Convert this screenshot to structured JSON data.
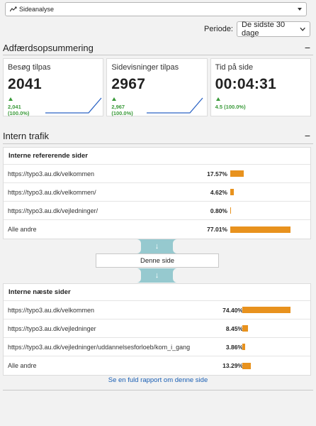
{
  "top_select": {
    "label": "Sideanalyse",
    "icon": "trend-line-icon"
  },
  "period": {
    "label": "Periode:",
    "value": "De sidste 30 dage"
  },
  "behavior": {
    "title": "Adfærdsopsummering",
    "collapse": "−",
    "kpis": [
      {
        "title": "Besøg tilpas",
        "value": "2041",
        "delta_value": "2,041",
        "delta_pct": "(100.0%)"
      },
      {
        "title": "Sidevisninger tilpas",
        "value": "2967",
        "delta_value": "2,967",
        "delta_pct": "(100.0%)"
      },
      {
        "title": "Tid på side",
        "value": "00:04:31",
        "delta_value": "4.5 (100.0%)",
        "delta_pct": ""
      }
    ],
    "colors": {
      "sparkline": "#2c64c4",
      "positive": "#3a9a3a"
    }
  },
  "internal": {
    "title": "Intern trafik",
    "collapse": "−",
    "referrers": {
      "title": "Interne refererende sider",
      "rows": [
        {
          "url": "https://typo3.au.dk/velkommen",
          "pct": "17.57%",
          "share": 17.57
        },
        {
          "url": "https://typo3.au.dk/velkommen/",
          "pct": "4.62%",
          "share": 4.62
        },
        {
          "url": "https://typo3.au.dk/vejledninger/",
          "pct": "0.80%",
          "share": 0.8
        },
        {
          "url": "Alle andre",
          "pct": "77.01%",
          "share": 77.01
        }
      ]
    },
    "flow": {
      "down_icon": "arrow-down-icon",
      "this_page": "Denne side"
    },
    "next": {
      "title": "Interne næste sider",
      "rows": [
        {
          "url": "https://typo3.au.dk/velkommen",
          "pct": "74.40%",
          "share": 74.4
        },
        {
          "url": "https://typo3.au.dk/vejledninger",
          "pct": "8.45%",
          "share": 8.45
        },
        {
          "url": "https://typo3.au.dk/vejledninger/uddannelsesforloeb/kom_i_gang",
          "pct": "3.86%",
          "share": 3.86
        },
        {
          "url": "Alle andre",
          "pct": "13.29%",
          "share": 13.29
        }
      ]
    },
    "bar_color": "#e8921e",
    "report_link": "Se en fuld rapport om denne side"
  }
}
